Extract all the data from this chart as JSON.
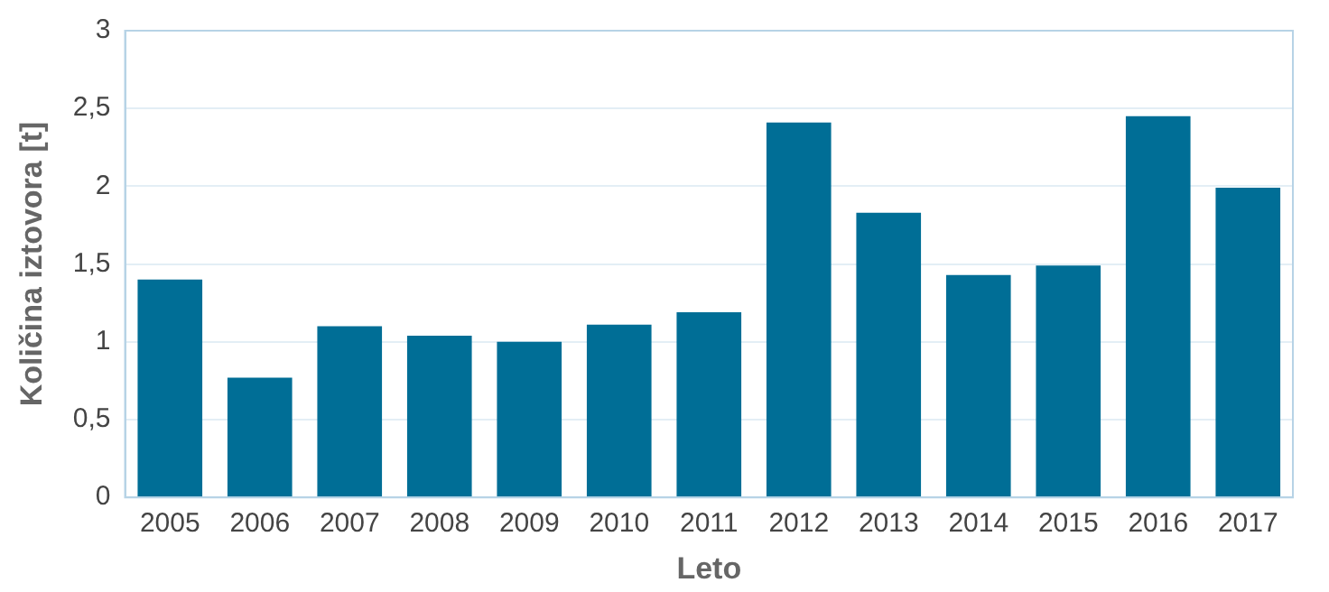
{
  "chart_data": {
    "type": "bar",
    "xlabel": "Leto",
    "ylabel": "Količina iztovora [t]",
    "categories": [
      "2005",
      "2006",
      "2007",
      "2008",
      "2009",
      "2010",
      "2011",
      "2012",
      "2013",
      "2014",
      "2015",
      "2016",
      "2017"
    ],
    "series": [
      {
        "color": "#006e96",
        "values": [
          1.4,
          0.77,
          1.1,
          1.04,
          1.0,
          1.11,
          1.19,
          2.41,
          1.83,
          1.43,
          1.49,
          2.45,
          1.99
        ]
      }
    ],
    "ylim": [
      0,
      3
    ],
    "yticks": [
      0,
      {
        "value": 0.5,
        "label": "0,5"
      },
      1,
      {
        "value": 1.5,
        "label": "1,5"
      },
      2,
      {
        "value": 2.5,
        "label": "2,5"
      },
      3
    ],
    "grid": "y",
    "legend": false
  }
}
